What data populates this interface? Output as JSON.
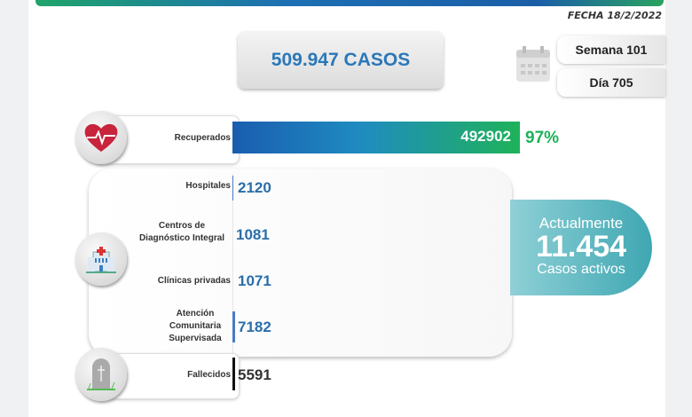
{
  "header": {
    "date": "FECHA 18/2/2022",
    "total_cases": "509.947 CASOS",
    "week": "Semana 101",
    "day": "Día 705"
  },
  "recovered": {
    "label": "Recuperados",
    "value": "492902",
    "percent": "97%",
    "percent_value": 97
  },
  "active_breakdown": [
    {
      "label": "Hospitales",
      "value": "2120"
    },
    {
      "label": "Centros de Diagnóstico Integral",
      "value": "1081"
    },
    {
      "label": "Clínicas privadas",
      "value": "1071"
    },
    {
      "label": "Atención Comunitaria Supervisada",
      "value": "7182"
    }
  ],
  "active": {
    "prefix": "Actualmente",
    "value": "11.454",
    "suffix": "Casos activos"
  },
  "deceased": {
    "label": "Fallecidos",
    "value": "5591"
  },
  "colors": {
    "blue": "#2a6eaa",
    "green": "#1fb25a",
    "teal": "#3fa7b2"
  }
}
